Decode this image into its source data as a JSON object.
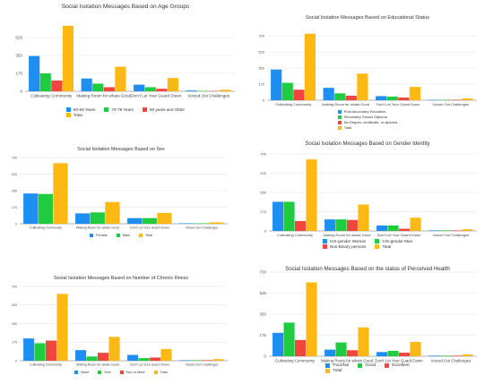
{
  "colors": {
    "blue": "#1f8ef1",
    "green": "#1fcc3f",
    "red": "#f2453d",
    "gold": "#fdb813",
    "grid": "#e2e2e2",
    "axis": "#9a9a9a"
  },
  "chart_data": [
    {
      "type": "bar",
      "title": "Social Isolation Messages Based on Age Groups",
      "categories": [
        "Cultivating Community",
        "Making Room for whats Good",
        "Don't Let Your Guard Down",
        "Voiced Out Challenges"
      ],
      "yticks": [
        "0",
        "175",
        "350",
        "525"
      ],
      "ylim": [
        0,
        700
      ],
      "series": [
        {
          "name": "60-69 Years",
          "color": "#1f8ef1",
          "values": [
            345,
            125,
            65,
            8
          ]
        },
        {
          "name": "70-79 Years",
          "color": "#1fcc3f",
          "values": [
            175,
            75,
            40,
            4
          ]
        },
        {
          "name": "80 years and Older",
          "color": "#f2453d",
          "values": [
            105,
            40,
            25,
            3
          ]
        },
        {
          "name": "Total",
          "color": "#fdb813",
          "values": [
            640,
            240,
            130,
            15
          ]
        }
      ],
      "legend_position": "bottom"
    },
    {
      "type": "bar",
      "title": "Social Isolation Messages Based on Educational Status",
      "categories": [
        "Cultivating Community",
        "Making Room for whats Good",
        "Don't Let Your Guard Down",
        "Voiced Out Challenges"
      ],
      "yticks": [
        "0",
        "175",
        "350",
        "525",
        "700"
      ],
      "ylim": [
        0,
        800
      ],
      "series": [
        {
          "name": "Post-secondary Education",
          "color": "#1f8ef1",
          "values": [
            335,
            135,
            45,
            5
          ]
        },
        {
          "name": "Secondary School Diploma",
          "color": "#1fcc3f",
          "values": [
            190,
            75,
            40,
            5
          ]
        },
        {
          "name": "No Degree, certificate, or diploma",
          "color": "#f2453d",
          "values": [
            115,
            50,
            30,
            5
          ]
        },
        {
          "name": "Total",
          "color": "#fdb813",
          "values": [
            725,
            290,
            145,
            20
          ]
        }
      ],
      "legend_position": "bottom"
    },
    {
      "type": "bar",
      "title": "Social Isolation Messages Based on Sex",
      "categories": [
        "Cultivating Community",
        "Making Room for whats Good",
        "Don't Let Your Guard Down",
        "Voiced Out Challenges"
      ],
      "yticks": [
        "0",
        "175",
        "350",
        "525",
        "700"
      ],
      "ylim": [
        0,
        700
      ],
      "series": [
        {
          "name": "Female",
          "color": "#1f8ef1",
          "values": [
            320,
            110,
            60,
            5
          ]
        },
        {
          "name": "Male",
          "color": "#1fcc3f",
          "values": [
            315,
            120,
            60,
            5
          ]
        },
        {
          "name": "Total",
          "color": "#fdb813",
          "values": [
            640,
            230,
            115,
            15
          ]
        }
      ],
      "legend_position": "bottom"
    },
    {
      "type": "bar",
      "title": "Social Isolation Messages Based on Gender Identity",
      "categories": [
        "Cultivating Community",
        "Making Room for whats Good",
        "Don't Let Your Guard Down",
        "Voiced Out Challenges"
      ],
      "yticks": [
        "0",
        "175",
        "350",
        "525",
        "700"
      ],
      "ylim": [
        0,
        700
      ],
      "series": [
        {
          "name": "CIS-gender Woman",
          "color": "#1f8ef1",
          "values": [
            265,
            105,
            50,
            5
          ]
        },
        {
          "name": "CIS-gender Man",
          "color": "#1fcc3f",
          "values": [
            265,
            105,
            50,
            5
          ]
        },
        {
          "name": "Non-Binary persons",
          "color": "#f2453d",
          "values": [
            90,
            100,
            20,
            5
          ]
        },
        {
          "name": "Total",
          "color": "#fdb813",
          "values": [
            650,
            240,
            120,
            15
          ]
        }
      ],
      "legend_position": "bottom"
    },
    {
      "type": "bar",
      "title": "Social Isolation Messages Based on Number of Chronic Illness",
      "categories": [
        "Cultivating Community",
        "Making Room for whats Good",
        "Don't Let Your Guard Down",
        "Voiced Out Challenges"
      ],
      "yticks": [
        "0",
        "175",
        "350",
        "525",
        "700"
      ],
      "ylim": [
        0,
        700
      ],
      "series": [
        {
          "name": "None",
          "color": "#1f8ef1",
          "values": [
            210,
            100,
            55,
            5
          ]
        },
        {
          "name": "One",
          "color": "#1fcc3f",
          "values": [
            165,
            40,
            25,
            5
          ]
        },
        {
          "name": "Two or More",
          "color": "#f2453d",
          "values": [
            190,
            75,
            30,
            5
          ]
        },
        {
          "name": "Total",
          "color": "#fdb813",
          "values": [
            630,
            225,
            110,
            15
          ]
        }
      ],
      "legend_position": "bottom"
    },
    {
      "type": "bar",
      "title": "Social Isolation Messages Based on the status of Perceived Health",
      "categories": [
        "Cultivating Community",
        "Making Room for whats Good",
        "Don't Let Your Guard Down",
        "Voiced Out Challenges"
      ],
      "yticks": [
        "0",
        "175",
        "350",
        "525",
        "700"
      ],
      "ylim": [
        0,
        700
      ],
      "series": [
        {
          "name": "Poor/fair",
          "color": "#1f8ef1",
          "values": [
            195,
            55,
            35,
            5
          ]
        },
        {
          "name": "Good",
          "color": "#1fcc3f",
          "values": [
            280,
            115,
            45,
            5
          ]
        },
        {
          "name": "Excellent",
          "color": "#f2453d",
          "values": [
            135,
            50,
            30,
            5
          ]
        },
        {
          "name": "Total",
          "color": "#fdb813",
          "values": [
            615,
            240,
            120,
            15
          ]
        }
      ],
      "legend_position": "bottom"
    }
  ]
}
